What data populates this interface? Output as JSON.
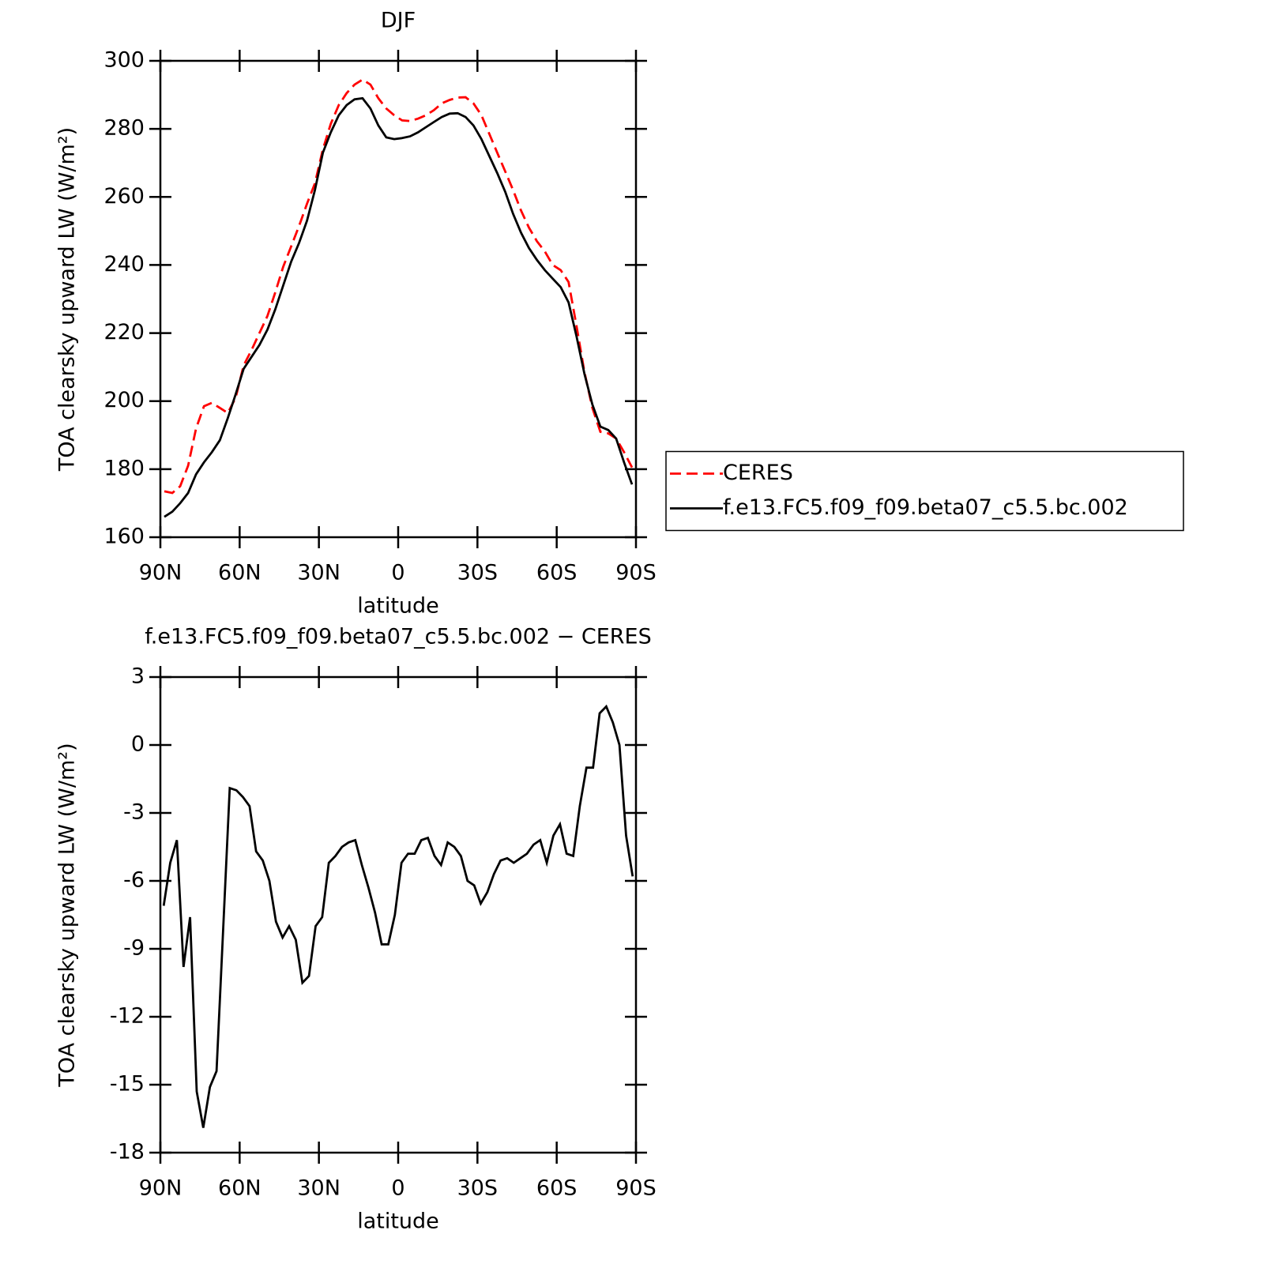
{
  "chart_data": [
    {
      "type": "line",
      "title": "DJF",
      "xlabel": "latitude",
      "ylabel": "TOA clearsky upward LW (W/m²)",
      "x": [
        88.5,
        85.5,
        82.5,
        79.5,
        76.5,
        73.5,
        70.5,
        67.5,
        64.5,
        61.5,
        58.5,
        55.5,
        52.5,
        49.5,
        46.5,
        43.5,
        40.5,
        37.5,
        34.5,
        31.5,
        28.5,
        25.5,
        22.5,
        19.5,
        16.5,
        13.5,
        10.5,
        7.5,
        4.5,
        1.5,
        -1.5,
        -4.5,
        -7.5,
        -10.5,
        -13.5,
        -16.5,
        -19.5,
        -22.5,
        -25.5,
        -28.5,
        -31.5,
        -34.5,
        -37.5,
        -40.5,
        -43.5,
        -46.5,
        -49.5,
        -52.5,
        -55.5,
        -58.5,
        -61.5,
        -64.5,
        -67.5,
        -70.5,
        -73.5,
        -76.5,
        -79.5,
        -82.5,
        -85.5,
        -88.5
      ],
      "series": [
        {
          "name": "CERES",
          "color": "#ff0000",
          "linestyle": "dashed",
          "values": [
            173.5,
            173,
            175,
            181,
            192,
            198.5,
            199.5,
            198,
            196.5,
            201,
            210.5,
            215,
            220,
            225,
            232,
            239.5,
            245.5,
            251.5,
            258,
            264,
            274,
            281.5,
            287,
            290.5,
            293,
            294.5,
            293,
            289,
            286,
            284,
            282.5,
            282.3,
            283,
            284,
            285.5,
            287.5,
            288.5,
            289.2,
            289.3,
            287.5,
            284,
            278.5,
            273,
            267.5,
            262,
            256,
            251,
            247,
            244,
            240,
            238.5,
            235,
            222,
            208.5,
            198,
            191,
            190.5,
            189,
            185,
            180.5
          ]
        },
        {
          "name": "f.e13.FC5.f09_f09.beta07_c5.5.bc.002",
          "color": "#000000",
          "linestyle": "solid",
          "values": [
            166,
            167.5,
            170,
            173,
            178.5,
            182,
            185,
            188.5,
            195,
            202,
            209.5,
            213,
            216.5,
            221,
            227,
            234,
            241,
            246.5,
            253,
            262,
            273,
            279,
            284,
            287,
            288.7,
            289,
            286,
            281,
            277.5,
            277,
            277.3,
            277.8,
            279,
            280.5,
            282,
            283.5,
            284.5,
            284.6,
            283.5,
            281,
            277,
            272,
            267,
            261.5,
            255,
            249.5,
            245,
            241.5,
            238.5,
            236,
            233.5,
            229,
            219,
            208,
            199,
            192.5,
            191.5,
            189,
            182,
            175.5
          ]
        }
      ],
      "xlim": [
        90,
        -90
      ],
      "xticks": [
        {
          "value": 90,
          "label": "90N"
        },
        {
          "value": 60,
          "label": "60N"
        },
        {
          "value": 30,
          "label": "30N"
        },
        0,
        {
          "value": -30,
          "label": "30S"
        },
        {
          "value": -60,
          "label": "60S"
        },
        {
          "value": -90,
          "label": "90S"
        }
      ],
      "ylim": [
        160,
        300
      ],
      "yticks": [
        160,
        180,
        200,
        220,
        240,
        260,
        280,
        300
      ],
      "legend": "right"
    },
    {
      "type": "line",
      "title": "f.e13.FC5.f09_f09.beta07_c5.5.bc.002 − CERES",
      "xlabel": "latitude",
      "ylabel": "TOA clearsky upward LW (W/m²)",
      "x": [
        88.75,
        86.25,
        83.75,
        81.25,
        78.75,
        76.25,
        73.75,
        71.25,
        68.75,
        66.25,
        63.75,
        61.25,
        58.75,
        56.25,
        53.75,
        51.25,
        48.75,
        46.25,
        43.75,
        41.25,
        38.75,
        36.25,
        33.75,
        31.25,
        28.75,
        26.25,
        23.75,
        21.25,
        18.75,
        16.25,
        13.75,
        11.25,
        8.75,
        6.25,
        3.75,
        1.25,
        -1.25,
        -3.75,
        -6.25,
        -8.75,
        -11.25,
        -13.75,
        -16.25,
        -18.75,
        -21.25,
        -23.75,
        -26.25,
        -28.75,
        -31.25,
        -33.75,
        -36.25,
        -38.75,
        -41.25,
        -43.75,
        -46.25,
        -48.75,
        -51.25,
        -53.75,
        -56.25,
        -58.75,
        -61.25,
        -63.75,
        -66.25,
        -68.75,
        -71.25,
        -73.75,
        -76.25,
        -78.75,
        -81.25,
        -83.75,
        -86.25,
        -88.75
      ],
      "values": [
        -7.1,
        -5.2,
        -4.2,
        -9.8,
        -7.6,
        -15.3,
        -16.9,
        -15.1,
        -14.4,
        -8.2,
        -1.9,
        -2.0,
        -2.3,
        -2.7,
        -4.7,
        -5.1,
        -6.0,
        -7.8,
        -8.5,
        -8.0,
        -8.6,
        -10.5,
        -10.2,
        -8.0,
        -7.6,
        -5.2,
        -4.9,
        -4.5,
        -4.3,
        -4.2,
        -5.3,
        -6.3,
        -7.4,
        -8.8,
        -8.8,
        -7.5,
        -5.2,
        -4.8,
        -4.8,
        -4.2,
        -4.1,
        -4.9,
        -5.3,
        -4.3,
        -4.5,
        -4.9,
        -6.0,
        -6.2,
        -7.0,
        -6.5,
        -5.7,
        -5.1,
        -5.0,
        -5.2,
        -5.0,
        -4.8,
        -4.4,
        -4.2,
        -5.2,
        -4.0,
        -3.5,
        -4.8,
        -4.9,
        -2.7,
        -1.0,
        -1.0,
        1.4,
        1.7,
        1.0,
        0.0,
        -4.0,
        -5.8
      ],
      "color": "#000000",
      "xlim": [
        90,
        -90
      ],
      "xticks": [
        {
          "value": 90,
          "label": "90N"
        },
        {
          "value": 60,
          "label": "60N"
        },
        {
          "value": 30,
          "label": "30N"
        },
        0,
        {
          "value": -30,
          "label": "30S"
        },
        {
          "value": -60,
          "label": "60S"
        },
        {
          "value": -90,
          "label": "90S"
        }
      ],
      "ylim": [
        -18,
        3
      ],
      "yticks": [
        -18,
        -15,
        -12,
        -9,
        -6,
        -3,
        0,
        3
      ]
    }
  ]
}
